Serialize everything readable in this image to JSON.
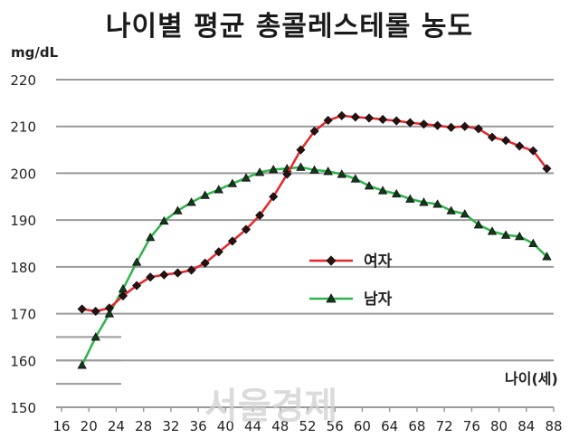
{
  "chart_data": {
    "type": "line",
    "title": "나이별 평균 총콜레스테롤 농도",
    "ylabel": "mg/dL",
    "xlabel": "나이(세)",
    "ylim": [
      150,
      220
    ],
    "yticks": [
      150,
      160,
      170,
      180,
      190,
      200,
      210,
      220
    ],
    "xlim": [
      16,
      88
    ],
    "xticks": [
      16,
      20,
      24,
      28,
      32,
      36,
      40,
      44,
      48,
      52,
      56,
      60,
      64,
      68,
      72,
      76,
      80,
      84,
      88
    ],
    "grid": true,
    "legend_position": "center-right",
    "series": [
      {
        "name": "여자",
        "color": "#e8262b",
        "marker": "diamond",
        "points": [
          [
            19,
            171.0
          ],
          [
            21,
            170.5
          ],
          [
            23,
            171.2
          ],
          [
            25,
            173.8
          ],
          [
            27,
            176.0
          ],
          [
            29,
            177.8
          ],
          [
            31,
            178.3
          ],
          [
            33,
            178.7
          ],
          [
            35,
            179.3
          ],
          [
            37,
            180.8
          ],
          [
            39,
            183.2
          ],
          [
            41,
            185.5
          ],
          [
            43,
            188.0
          ],
          [
            45,
            191.0
          ],
          [
            47,
            195.0
          ],
          [
            49,
            199.8
          ],
          [
            51,
            205.0
          ],
          [
            53,
            209.0
          ],
          [
            55,
            211.3
          ],
          [
            57,
            212.3
          ],
          [
            59,
            212.0
          ],
          [
            61,
            211.8
          ],
          [
            63,
            211.5
          ],
          [
            65,
            211.2
          ],
          [
            67,
            210.8
          ],
          [
            69,
            210.5
          ],
          [
            71,
            210.2
          ],
          [
            73,
            209.8
          ],
          [
            75,
            210.0
          ],
          [
            77,
            209.5
          ],
          [
            79,
            207.7
          ],
          [
            81,
            207.0
          ],
          [
            83,
            205.8
          ],
          [
            85,
            204.8
          ],
          [
            87,
            201.0
          ]
        ]
      },
      {
        "name": "남자",
        "color": "#2fb34a",
        "marker": "triangle",
        "points": [
          [
            19,
            159.0
          ],
          [
            21,
            165.0
          ],
          [
            23,
            170.0
          ],
          [
            25,
            175.3
          ],
          [
            27,
            181.0
          ],
          [
            29,
            186.3
          ],
          [
            31,
            189.8
          ],
          [
            33,
            192.0
          ],
          [
            35,
            193.8
          ],
          [
            37,
            195.3
          ],
          [
            39,
            196.5
          ],
          [
            41,
            197.8
          ],
          [
            43,
            199.0
          ],
          [
            45,
            200.2
          ],
          [
            47,
            200.8
          ],
          [
            49,
            201.0
          ],
          [
            51,
            201.3
          ],
          [
            53,
            200.7
          ],
          [
            55,
            200.4
          ],
          [
            57,
            199.8
          ],
          [
            59,
            198.8
          ],
          [
            61,
            197.3
          ],
          [
            63,
            196.3
          ],
          [
            65,
            195.6
          ],
          [
            67,
            194.5
          ],
          [
            69,
            193.8
          ],
          [
            71,
            193.4
          ],
          [
            73,
            192.0
          ],
          [
            75,
            191.3
          ],
          [
            77,
            189.0
          ],
          [
            79,
            187.6
          ],
          [
            81,
            186.8
          ],
          [
            83,
            186.5
          ],
          [
            85,
            185.0
          ],
          [
            87,
            182.2
          ]
        ]
      }
    ]
  },
  "watermark": "서울경제"
}
